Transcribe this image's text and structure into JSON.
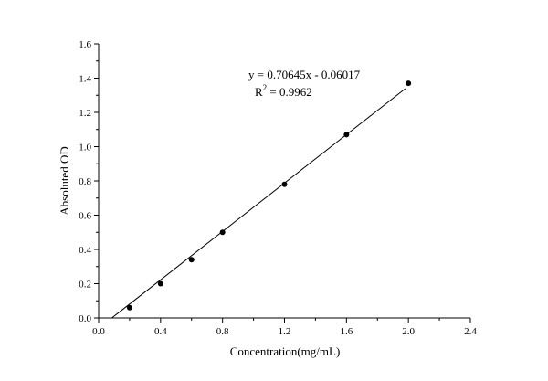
{
  "chart_data": {
    "type": "scatter",
    "xlabel": "Concentration(mg/mL)",
    "ylabel": "Absoluted OD",
    "xlim": [
      0.0,
      2.4
    ],
    "ylim": [
      0.0,
      1.6
    ],
    "x_ticks": [
      "0.0",
      "0.4",
      "0.8",
      "1.2",
      "1.6",
      "2.0",
      "2.4"
    ],
    "y_ticks": [
      "0.0",
      "0.2",
      "0.4",
      "0.6",
      "0.8",
      "1.0",
      "1.2",
      "1.4",
      "1.6"
    ],
    "grid": false,
    "series": [
      {
        "x": [
          0.2,
          0.4,
          0.6,
          0.8,
          1.2,
          1.6,
          2.0
        ],
        "y": [
          0.06,
          0.2,
          0.34,
          0.5,
          0.78,
          1.07,
          1.37
        ]
      }
    ],
    "fit_line": {
      "slope": 0.70645,
      "intercept": -0.06017,
      "x_range": [
        0.085,
        1.98
      ]
    },
    "annotations": {
      "equation": "y = 0.70645x - 0.06017",
      "r2_prefix": "R",
      "r2_sup": "2",
      "r2_value": " = 0.9962"
    },
    "colors": {
      "axis": "#000000",
      "points": "#000000",
      "line": "#000000"
    }
  }
}
